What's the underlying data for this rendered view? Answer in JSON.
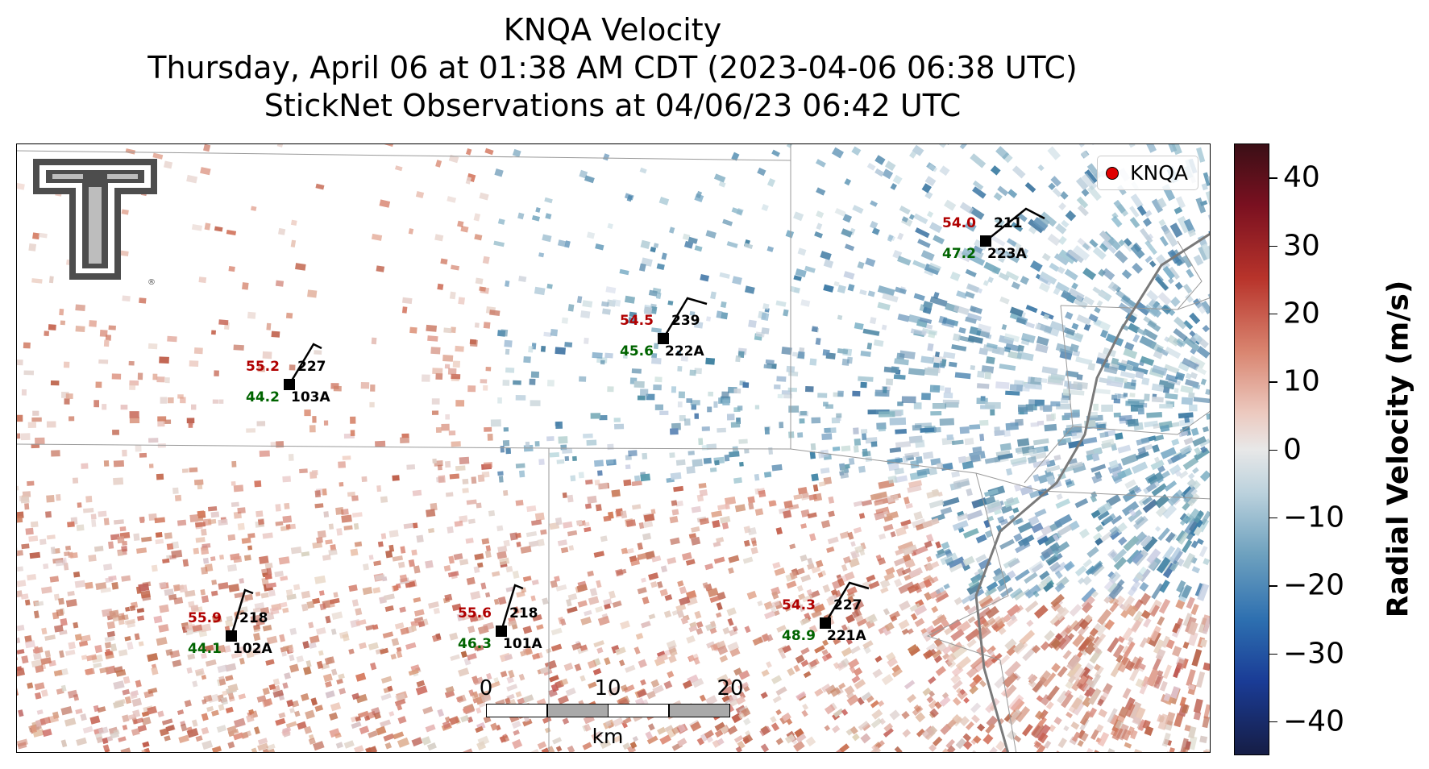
{
  "title": {
    "line1": "KNQA Velocity",
    "line2": "Thursday, April 06 at 01:38 AM CDT (2023-04-06 06:38 UTC)",
    "line3": "StickNet Observations at 04/06/23 06:42 UTC"
  },
  "legend": {
    "label": "KNQA",
    "marker_color": "#e00000"
  },
  "logo": {
    "name": "Texas Tech double-T logo",
    "mark": "®"
  },
  "stations": [
    {
      "id": "103A",
      "temp": "55.2",
      "dew": "44.2",
      "dir": "227"
    },
    {
      "id": "222A",
      "temp": "54.5",
      "dew": "45.6",
      "dir": "239"
    },
    {
      "id": "223A",
      "temp": "54.0",
      "dew": "47.2",
      "dir": "211"
    },
    {
      "id": "102A",
      "temp": "55.9",
      "dew": "44.1",
      "dir": "218"
    },
    {
      "id": "101A",
      "temp": "55.6",
      "dew": "46.3",
      "dir": "218"
    },
    {
      "id": "221A",
      "temp": "54.3",
      "dew": "48.9",
      "dir": "227"
    }
  ],
  "scale_bar": {
    "ticks": [
      "0",
      "10",
      "20"
    ],
    "unit": "km"
  },
  "colorbar": {
    "label": "Radial Velocity (m/s)",
    "ticks": [
      "40",
      "30",
      "20",
      "10",
      "0",
      "−10",
      "−20",
      "−30",
      "−40"
    ],
    "range": [
      -45,
      45
    ],
    "colors": {
      "max": "#3b0f16",
      "zero": "#e8e8e8",
      "min": "#161d45"
    }
  },
  "colors": {
    "temperature": "#b00000",
    "dewpoint": "#006400",
    "inbound": "#6fa2bf",
    "outbound": "#d98570"
  }
}
